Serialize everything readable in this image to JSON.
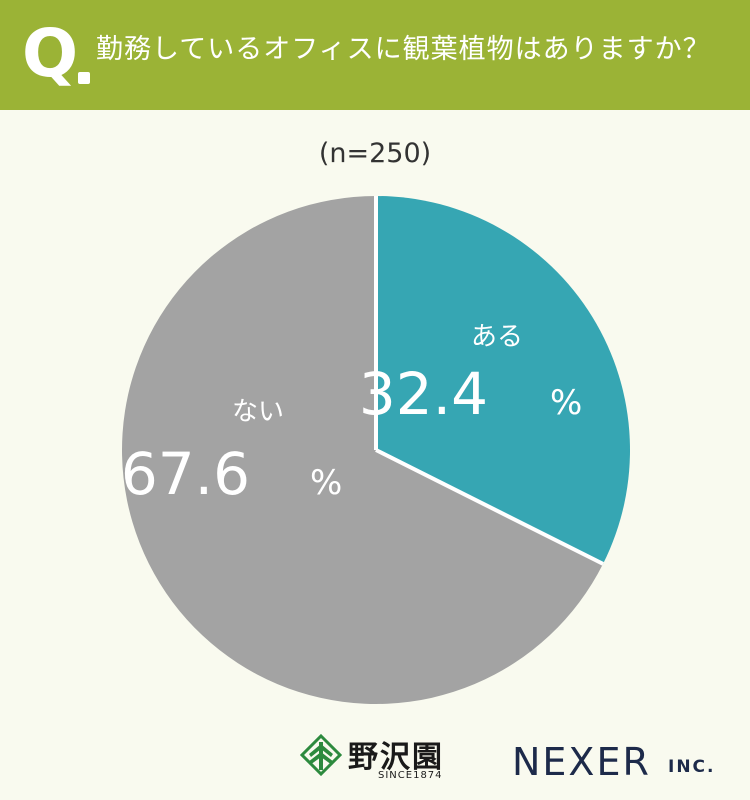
{
  "header": {
    "q_label": "Q",
    "question": "勤務しているオフィスに観葉植物はありますか？"
  },
  "sample": "(n=250)",
  "chart_data": {
    "type": "pie",
    "slices": [
      {
        "label": "ある",
        "value": 32.4,
        "value_text": "32.4",
        "unit": "%",
        "color": "#36a6b3"
      },
      {
        "label": "ない",
        "value": 67.6,
        "value_text": "67.6",
        "unit": "%",
        "color": "#a3a3a3"
      }
    ],
    "start": "top",
    "direction": "clockwise",
    "separator_color": "#ffffff"
  },
  "logos": {
    "nozawa_name": "野沢園",
    "nozawa_since": "SINCE1874",
    "nexer_name": "NEXER",
    "nexer_inc": "INC."
  }
}
